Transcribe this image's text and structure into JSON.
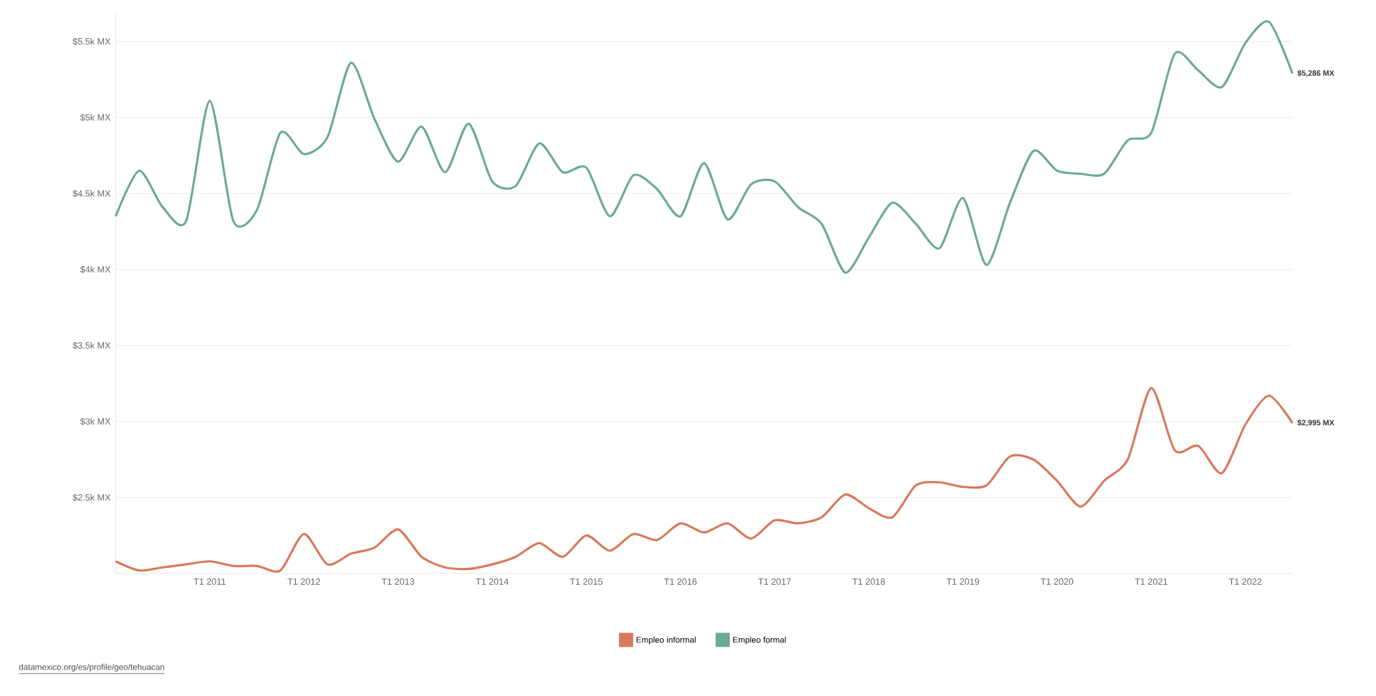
{
  "chart_data": {
    "type": "line",
    "categories": [
      null,
      null,
      null,
      null,
      "T1 2011",
      null,
      null,
      null,
      "T1 2012",
      null,
      null,
      null,
      "T1 2013",
      null,
      null,
      null,
      "T1 2014",
      null,
      null,
      null,
      "T1 2015",
      null,
      null,
      null,
      "T1 2016",
      null,
      null,
      null,
      "T1 2017",
      null,
      null,
      null,
      "T1 2018",
      null,
      null,
      null,
      "T1 2019",
      null,
      null,
      null,
      "T1 2020",
      null,
      null,
      null,
      "T1 2021",
      null,
      null,
      null,
      "T1 2022",
      null,
      null
    ],
    "series": [
      {
        "name": "Empleo informal",
        "color": "#d9785a",
        "values": [
          2080,
          2020,
          2040,
          2060,
          2080,
          2050,
          2050,
          2020,
          2260,
          2060,
          2130,
          2170,
          2290,
          2110,
          2040,
          2030,
          2060,
          2110,
          2200,
          2110,
          2250,
          2150,
          2260,
          2220,
          2330,
          2270,
          2330,
          2230,
          2350,
          2330,
          2370,
          2520,
          2430,
          2370,
          2580,
          2600,
          2570,
          2580,
          2770,
          2750,
          2610,
          2440,
          2610,
          2750,
          3220,
          2810,
          2840,
          2660,
          2980,
          3170,
          2990
        ]
      },
      {
        "name": "Empleo formal",
        "color": "#6aaa96",
        "values": [
          4350,
          4650,
          4410,
          4320,
          5110,
          4320,
          4390,
          4900,
          4760,
          4870,
          5360,
          4990,
          4710,
          4940,
          4640,
          4960,
          4580,
          4550,
          4830,
          4640,
          4670,
          4350,
          4620,
          4530,
          4350,
          4700,
          4330,
          4560,
          4580,
          4410,
          4300,
          3980,
          4210,
          4440,
          4300,
          4140,
          4470,
          4030,
          4440,
          4780,
          4650,
          4630,
          4630,
          4850,
          4900,
          5420,
          5310,
          5200,
          5490,
          5630,
          5290
        ]
      }
    ],
    "ylim": [
      2000,
      5700
    ],
    "yticks": [
      {
        "value": 2500,
        "label": "$2.5k MX"
      },
      {
        "value": 3000,
        "label": "$3k MX"
      },
      {
        "value": 3500,
        "label": "$3.5k MX"
      },
      {
        "value": 4000,
        "label": "$4k MX"
      },
      {
        "value": 4500,
        "label": "$4.5k MX"
      },
      {
        "value": 5000,
        "label": "$5k MX"
      },
      {
        "value": 5500,
        "label": "$5.5k MX"
      }
    ],
    "grid": "y",
    "legend": "bottom",
    "marker": "none",
    "line_style": "solid",
    "annotations": [
      "$2,995 MX",
      "$5,286 MX",
      "datamexico.org/es/profile/geo/tehuacan"
    ]
  }
}
